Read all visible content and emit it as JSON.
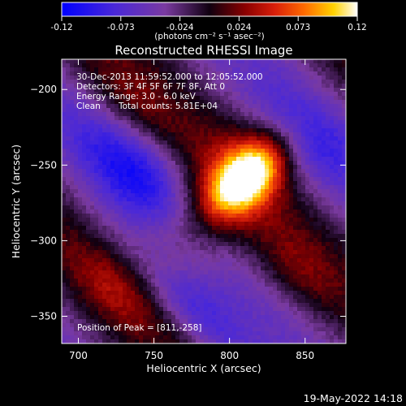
{
  "chart_data": {
    "type": "heatmap",
    "title": "Reconstructed RHESSI Image",
    "xlabel": "Heliocentric X (arcsec)",
    "ylabel": "Heliocentric Y (arcsec)",
    "xlim": [
      689,
      877
    ],
    "ylim": [
      -368,
      -180
    ],
    "xticks": [
      700,
      750,
      800,
      850
    ],
    "yticks": [
      -200,
      -250,
      -300,
      -350
    ],
    "colorbar": {
      "range": [
        -0.12,
        0.12
      ],
      "ticks": [
        "-0.12",
        "-0.073",
        "-0.024",
        "0.024",
        "0.073",
        "0.12"
      ],
      "units": "(photons cm⁻² s⁻¹ asec⁻²)",
      "colormap_colors": [
        "#0000ff",
        "#5a2cd0",
        "#7a3aa0",
        "#100010",
        "#7a0000",
        "#c81414",
        "#ff5a00",
        "#ffc800",
        "#ffffff"
      ]
    },
    "annotations": [
      "30-Dec-2013 11:59:52.000 to 12:05:52.000",
      "Detectors: 3F 4F 5F 6F 7F 8F, Att 0",
      "Energy Range: 3.0 - 6.0 keV",
      "Clean",
      "Total counts: 5.81E+04"
    ],
    "peak_label": "Position of Peak = [811,-258]",
    "peak": {
      "x": 811,
      "y": -258,
      "value": 0.12
    },
    "features": [
      {
        "kind": "source",
        "x": 811,
        "y": -258,
        "amp": 0.12,
        "sx": 12,
        "sy": 22
      },
      {
        "kind": "ridge",
        "x": 795,
        "y": -270,
        "amp": 0.05,
        "sx": 22,
        "sy": 55
      },
      {
        "kind": "ridge",
        "x": 735,
        "y": -210,
        "amp": 0.03,
        "sx": 30,
        "sy": 14
      },
      {
        "kind": "ridge",
        "x": 845,
        "y": -320,
        "amp": 0.03,
        "sx": 25,
        "sy": 14
      },
      {
        "kind": "ridge",
        "x": 720,
        "y": -330,
        "amp": 0.025,
        "sx": 28,
        "sy": 12
      },
      {
        "kind": "trough",
        "x": 740,
        "y": -255,
        "amp": -0.06,
        "sx": 35,
        "sy": 18
      },
      {
        "kind": "trough",
        "x": 775,
        "y": -345,
        "amp": -0.05,
        "sx": 40,
        "sy": 12
      },
      {
        "kind": "trough",
        "x": 850,
        "y": -230,
        "amp": -0.05,
        "sx": 30,
        "sy": 20
      }
    ]
  },
  "footer_timestamp": "19-May-2022 14:18"
}
